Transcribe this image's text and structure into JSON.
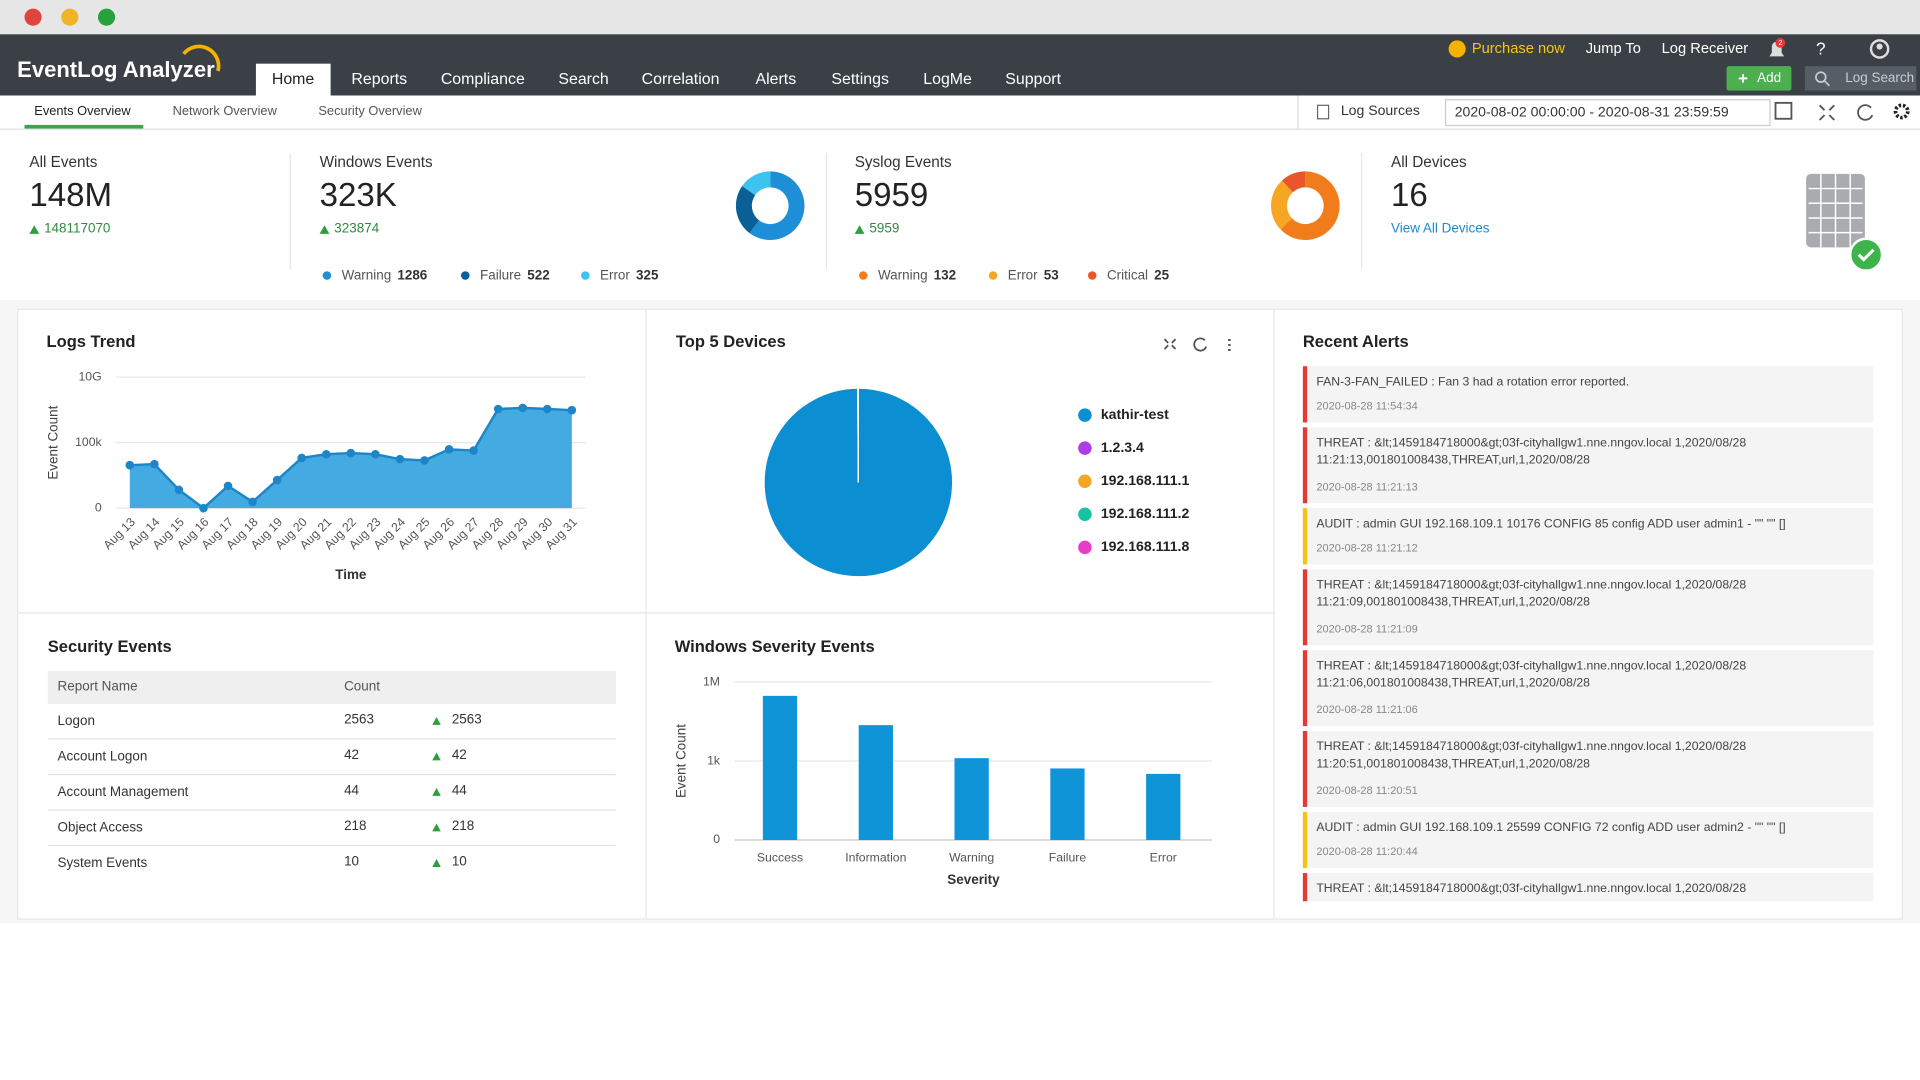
{
  "header": {
    "logo": "EventLog Analyzer",
    "purchase": "Purchase now",
    "jump_to": "Jump To",
    "log_receiver": "Log Receiver",
    "notifications": "2",
    "help": "?",
    "add": "Add",
    "search": "Log Search"
  },
  "nav": {
    "items": [
      "Home",
      "Reports",
      "Compliance",
      "Search",
      "Correlation",
      "Alerts",
      "Settings",
      "LogMe",
      "Support"
    ],
    "active": 0
  },
  "subnav": {
    "tabs": [
      "Events Overview",
      "Network Overview",
      "Security Overview"
    ],
    "active": 0,
    "log_sources": "Log Sources",
    "date_range": "2020-08-02 00:00:00 - 2020-08-31 23:59:59"
  },
  "summary": [
    {
      "title": "All Events",
      "value": "148M",
      "change": 148117070
    },
    {
      "title": "Windows Events",
      "value": "323K",
      "change": 323874,
      "breakdown": [
        {
          "label": "Warning",
          "count": 1286,
          "color": "#1e8fd6"
        },
        {
          "label": "Failure",
          "count": 522,
          "color": "#0b5f96"
        },
        {
          "label": "Error",
          "count": 325,
          "color": "#3cc3ee"
        }
      ]
    },
    {
      "title": "Syslog Events",
      "value": "5959",
      "change": 5959,
      "breakdown": [
        {
          "label": "Warning",
          "count": 132,
          "color": "#f07c1c"
        },
        {
          "label": "Error",
          "count": 53,
          "color": "#f6a623"
        },
        {
          "label": "Critical",
          "count": 25,
          "color": "#e8562a"
        }
      ]
    },
    {
      "title": "All Devices",
      "value": "16",
      "link": "View All Devices"
    }
  ],
  "chart_data": [
    {
      "type": "area",
      "title": "Logs Trend",
      "x_label": "Time",
      "y_label": "Event Count",
      "categories": [
        "Aug 13",
        "Aug 14",
        "Aug 15",
        "Aug 16",
        "Aug 17",
        "Aug 18",
        "Aug 19",
        "Aug 20",
        "Aug 21",
        "Aug 22",
        "Aug 23",
        "Aug 24",
        "Aug 25",
        "Aug 26",
        "Aug 27",
        "Aug 28",
        "Aug 29",
        "Aug 30",
        "Aug 31"
      ],
      "values": [
        1900,
        2300,
        25,
        1,
        50,
        3,
        140,
        6800,
        13000,
        16000,
        13000,
        5500,
        4400,
        31000,
        25000,
        37000000,
        45000000,
        37000000,
        30000000
      ],
      "color": "#3aa7e0",
      "line_color": "#1c86c8",
      "log_scale": true,
      "grid": true,
      "ylim": [
        1,
        10000000000
      ],
      "yticks": [
        {
          "value": 1,
          "label": "0"
        },
        {
          "value": 100000,
          "label": "100k"
        },
        {
          "value": 10000000000,
          "label": "10G"
        }
      ]
    },
    {
      "type": "pie",
      "title": "Top 5 Devices",
      "categories": [
        "kathir-test",
        "1.2.3.4",
        "192.168.111.1",
        "192.168.111.2",
        "192.168.111.8"
      ],
      "values": [
        99.9,
        0.03,
        0.03,
        0.02,
        0.02
      ],
      "colors": [
        "#0b8fd2",
        "#b03ce6",
        "#f5a623",
        "#16c2a0",
        "#e63dc6"
      ]
    },
    {
      "type": "bar",
      "title": "Windows Severity Events",
      "x_label": "Severity",
      "y_label": "Event Count",
      "categories": [
        "Success",
        "Information",
        "Warning",
        "Failure",
        "Error"
      ],
      "values": [
        298741,
        23000,
        1286,
        522,
        325
      ],
      "color": "#0f94d8",
      "log_scale": true,
      "grid": true,
      "ylim": [
        1,
        1000000
      ],
      "yticks": [
        {
          "value": 1,
          "label": "0"
        },
        {
          "value": 1000,
          "label": "1k"
        },
        {
          "value": 1000000,
          "label": "1M"
        }
      ]
    }
  ],
  "security_events": {
    "title": "Security Events",
    "columns": [
      "Report Name",
      "Count"
    ],
    "rows": [
      [
        "Logon",
        2563,
        2563
      ],
      [
        "Account Logon",
        42,
        42
      ],
      [
        "Account Management",
        44,
        44
      ],
      [
        "Object Access",
        218,
        218
      ],
      [
        "System Events",
        10,
        10
      ]
    ]
  },
  "recent_alerts": {
    "title": "Recent Alerts",
    "items": [
      {
        "message": [
          "FAN-3-FAN_FAILED : Fan 3 had a rotation error reported."
        ],
        "time": "2020-08-28 11:54:34",
        "color": "#e53935"
      },
      {
        "message": [
          "THREAT : &lt;1459184718000&gt;03f-cityhallgw1.nne.nngov.local 1,2020/08/28",
          "11:21:13,001801008438,THREAT,url,1,2020/08/28"
        ],
        "time": "2020-08-28 11:21:13",
        "color": "#e53935"
      },
      {
        "message": [
          "AUDIT : admin GUI 192.168.109.1 10176 CONFIG 85 config ADD user admin1 - \"\" \"\" []"
        ],
        "time": "2020-08-28 11:21:12",
        "color": "#f0c419"
      },
      {
        "message": [
          "THREAT : &lt;1459184718000&gt;03f-cityhallgw1.nne.nngov.local 1,2020/08/28",
          "11:21:09,001801008438,THREAT,url,1,2020/08/28"
        ],
        "time": "2020-08-28 11:21:09",
        "color": "#e53935"
      },
      {
        "message": [
          "THREAT : &lt;1459184718000&gt;03f-cityhallgw1.nne.nngov.local 1,2020/08/28",
          "11:21:06,001801008438,THREAT,url,1,2020/08/28"
        ],
        "time": "2020-08-28 11:21:06",
        "color": "#e53935"
      },
      {
        "message": [
          "THREAT : &lt;1459184718000&gt;03f-cityhallgw1.nne.nngov.local 1,2020/08/28",
          "11:20:51,001801008438,THREAT,url,1,2020/08/28"
        ],
        "time": "2020-08-28 11:20:51",
        "color": "#e53935"
      },
      {
        "message": [
          "AUDIT : admin GUI 192.168.109.1 25599 CONFIG 72 config ADD user admin2 - \"\" \"\" []"
        ],
        "time": "2020-08-28 11:20:44",
        "color": "#f0c419"
      },
      {
        "message": [
          "THREAT : &lt;1459184718000&gt;03f-cityhallgw1.nne.nngov.local 1,2020/08/28"
        ],
        "color": "#e53935"
      }
    ]
  }
}
